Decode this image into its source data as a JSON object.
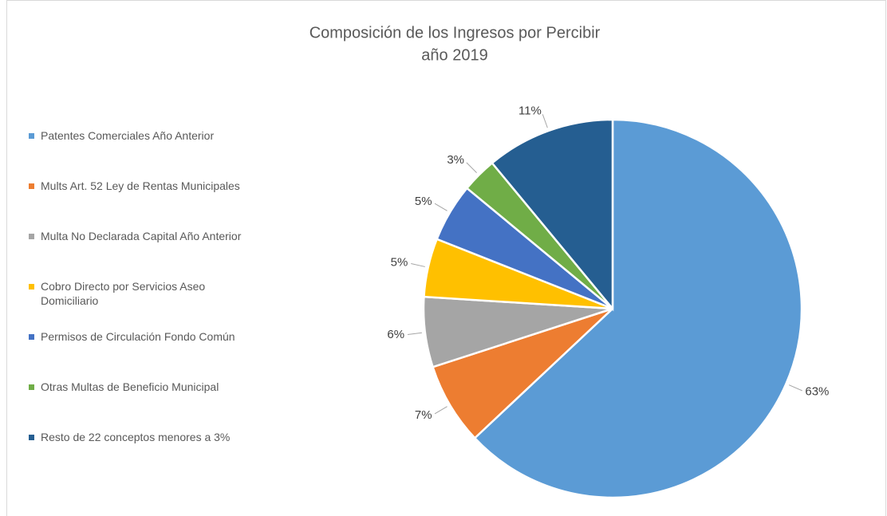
{
  "chart_data": {
    "type": "pie",
    "title": "Composición de los Ingresos por Percibir",
    "subtitle": "año 2019",
    "categories": [
      "Patentes Comerciales Año Anterior",
      "Mults Art. 52 Ley de Rentas Municipales",
      "Multa No Declarada Capital Año Anterior",
      "Cobro Directo por Servicios Aseo Domiciliario",
      "Permisos de Circulación Fondo Común",
      "Otras Multas de Beneficio Municipal",
      "Resto de 22 conceptos menores a 3%"
    ],
    "values": [
      63,
      7,
      6,
      5,
      5,
      3,
      11
    ],
    "value_labels": [
      "63%",
      "7%",
      "6%",
      "5%",
      "5%",
      "3%",
      "11%"
    ],
    "colors": [
      "#5b9bd5",
      "#ed7d31",
      "#a5a5a5",
      "#ffc000",
      "#4472c4",
      "#70ad47",
      "#255e91"
    ],
    "legend": "left"
  }
}
